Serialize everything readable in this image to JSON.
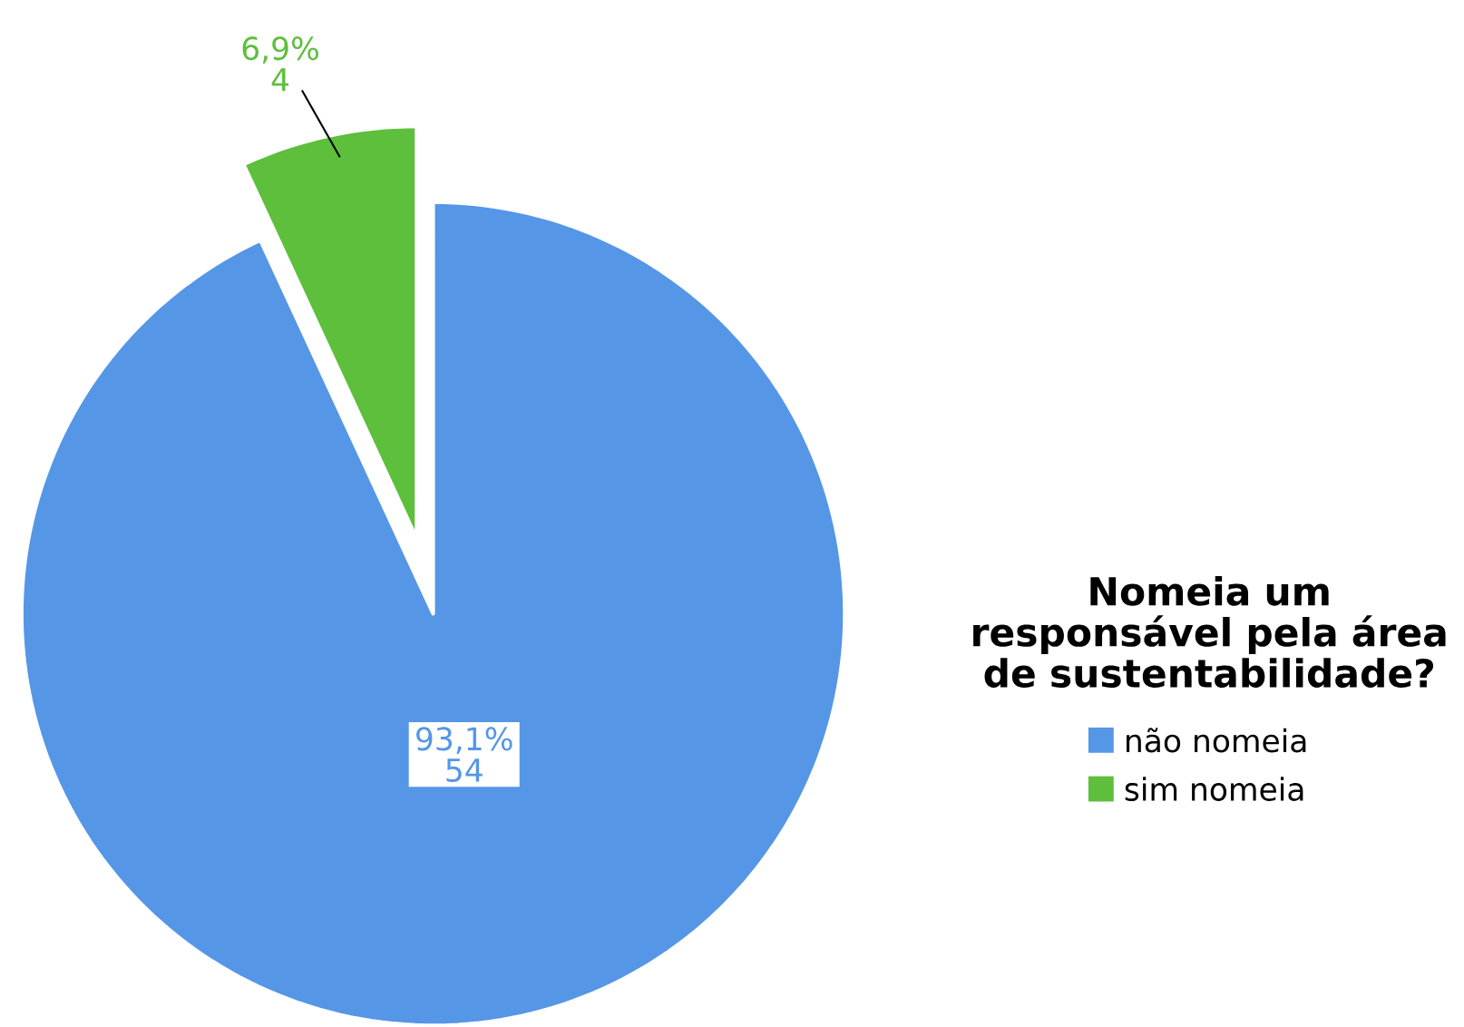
{
  "chart_data": {
    "type": "pie",
    "legend_title": "Nomeia um responsável pela área de sustentabilidade?",
    "legend": "right",
    "categories": [
      "não nomeia",
      "sim nomeia"
    ],
    "values": [
      54,
      4
    ],
    "colors": [
      "#5596e6",
      "#5dbf3c"
    ],
    "value_labels": [
      "93,1% 54",
      "6,9% 4"
    ]
  }
}
